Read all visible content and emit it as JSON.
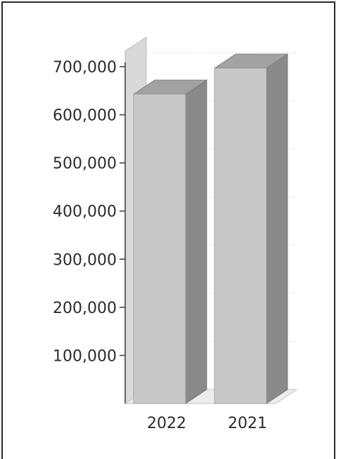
{
  "chart_data": {
    "type": "bar",
    "title": "",
    "xlabel": "",
    "ylabel": "",
    "categories": [
      "2022",
      "2021"
    ],
    "values": [
      643000,
      697000
    ],
    "ylim": [
      0,
      700000
    ],
    "yticks": [
      100000,
      200000,
      300000,
      400000,
      500000,
      600000,
      700000
    ],
    "ytick_labels": [
      "100,000",
      "200,000",
      "300,000",
      "400,000",
      "500,000",
      "600,000",
      "700,000"
    ],
    "grid": true,
    "style": "3d",
    "colors": {
      "bar_front": "#c8c8c8",
      "bar_side": "#8a8a8a",
      "bar_top": "#a2a2a2",
      "back_wall": "#d9d9d9",
      "grid": "#bdbdbd",
      "axis": "#3a3a3a"
    }
  }
}
